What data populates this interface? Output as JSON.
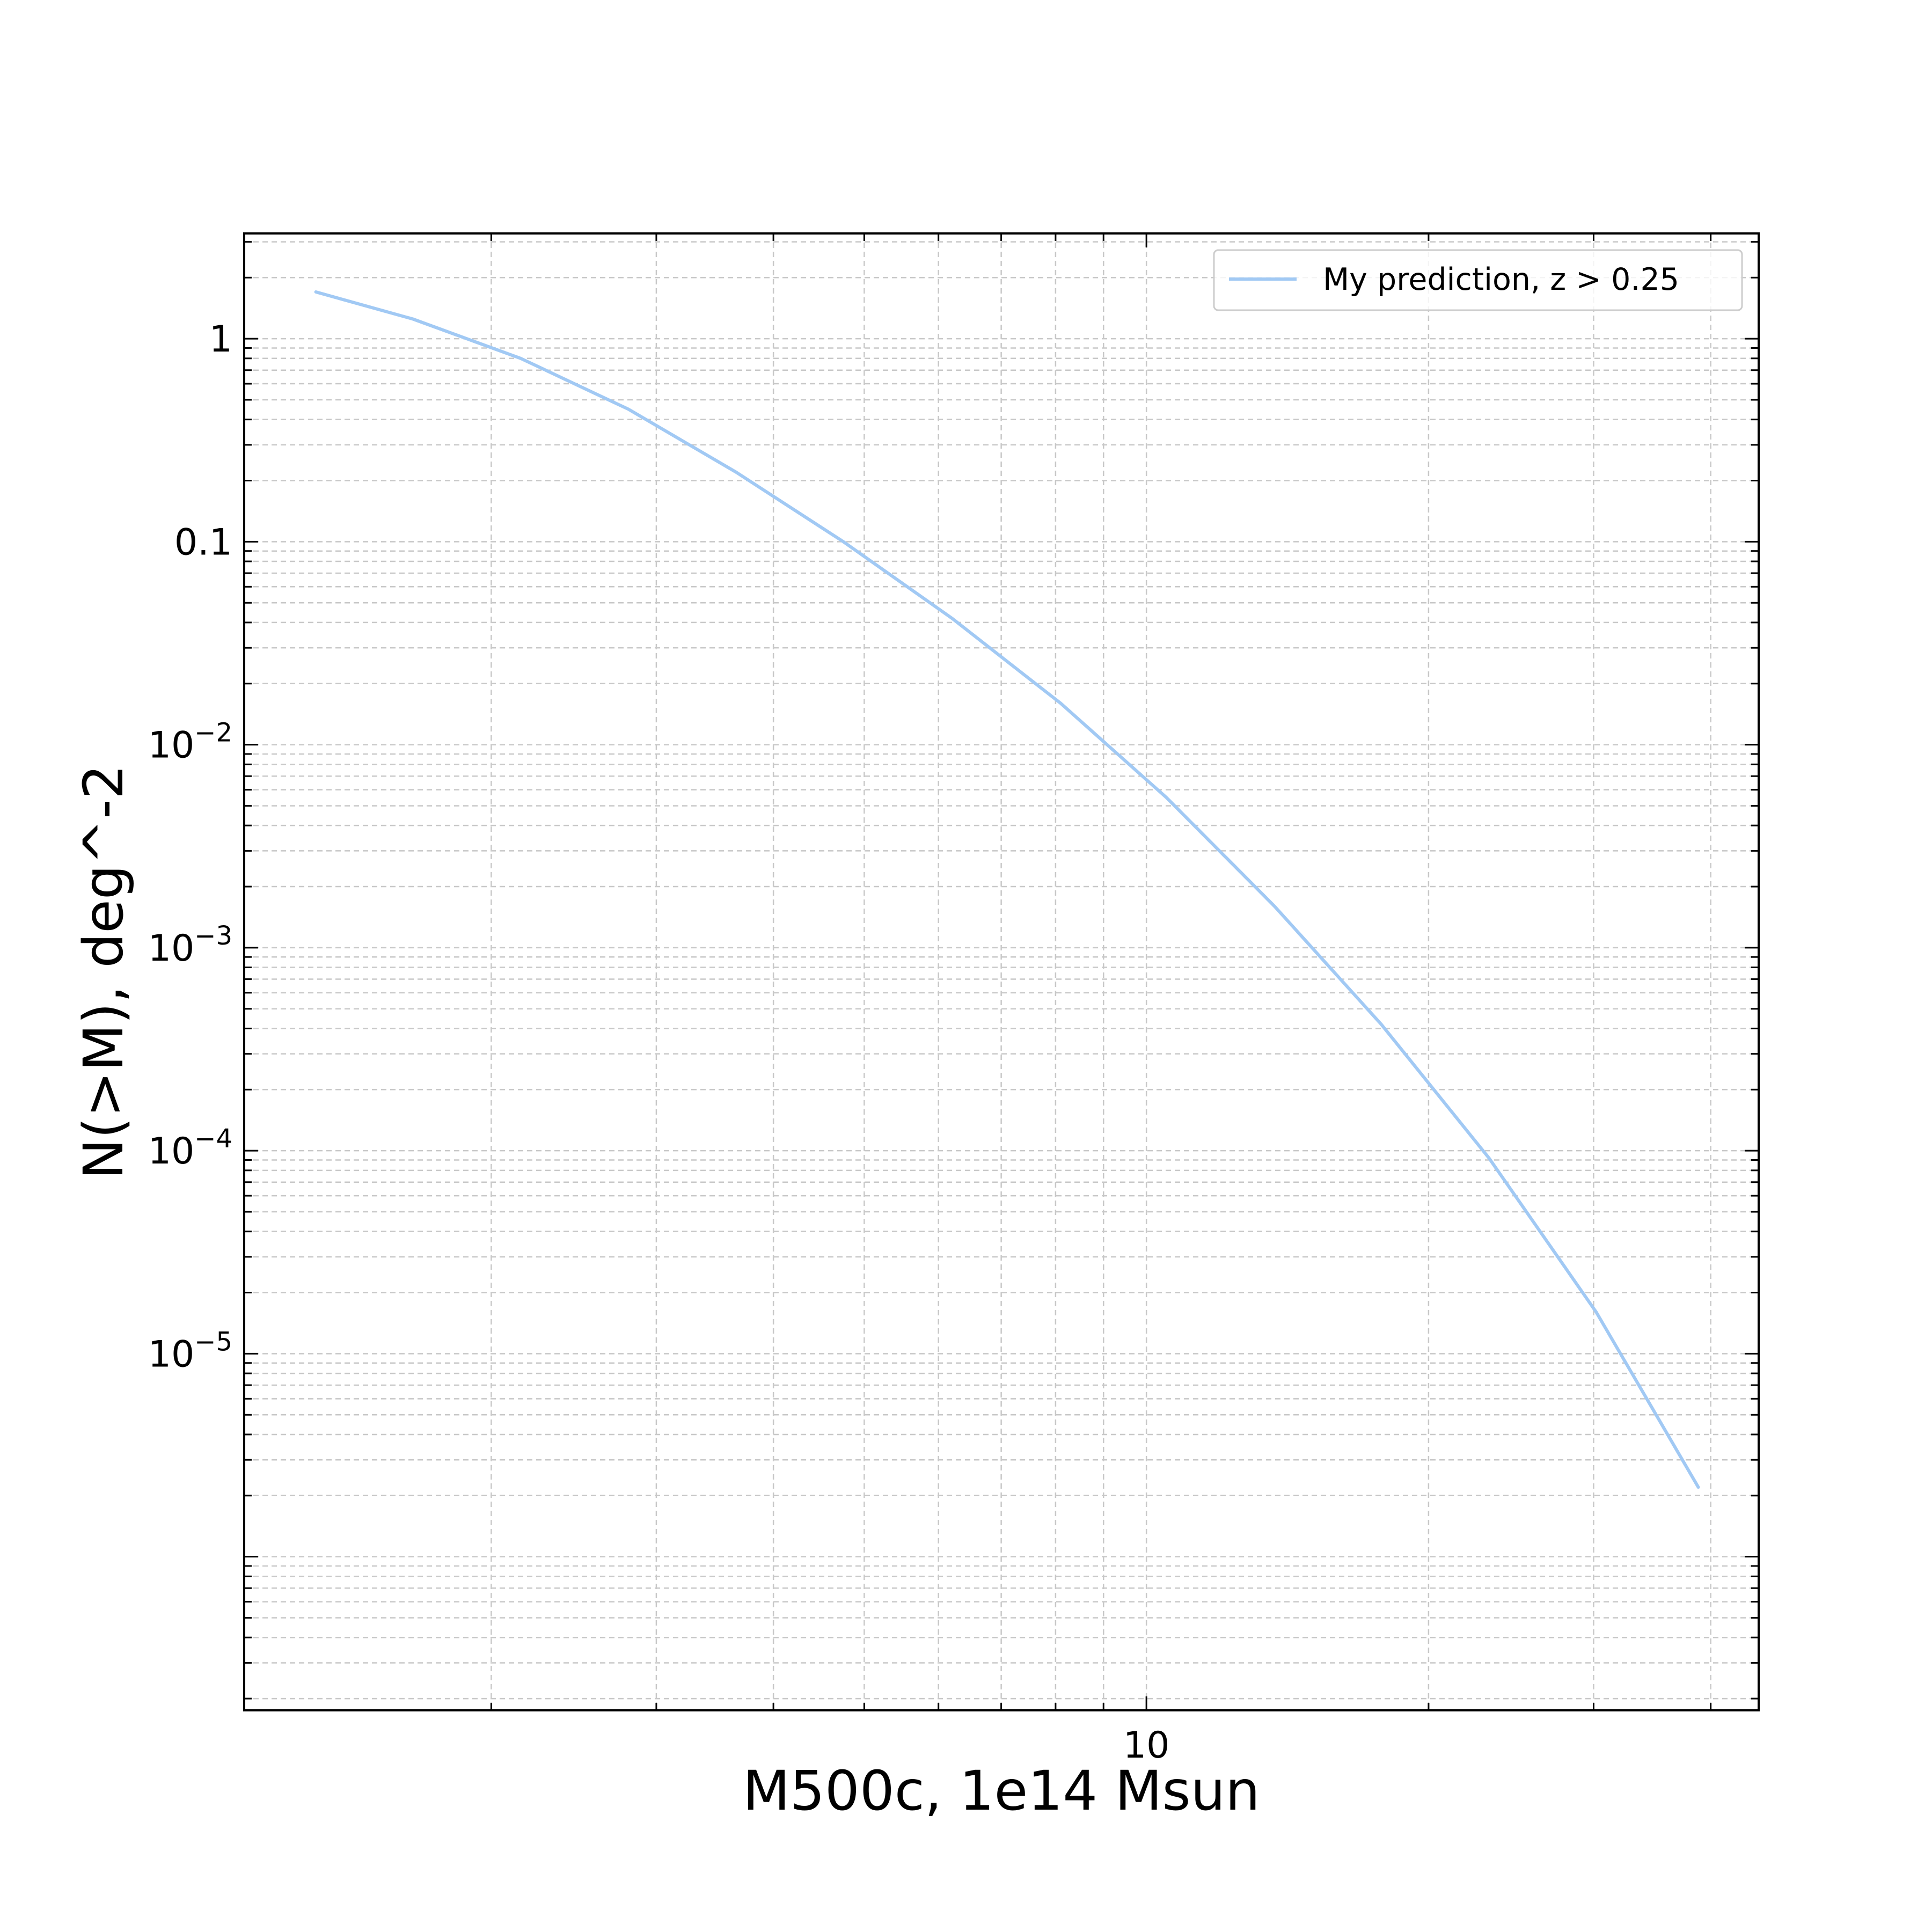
{
  "chart_data": {
    "type": "line",
    "xlabel": "M500c, 1e14 Msun",
    "ylabel": "N(>M), deg^-2",
    "xscale": "log",
    "yscale": "log",
    "xlim": [
      1.09,
      45.0
    ],
    "ylim": [
      1.75e-07,
      3.3
    ],
    "grid": true,
    "legend_placement": "top-right",
    "x_tick_labels": [
      {
        "value": 10,
        "label": "10"
      }
    ],
    "y_tick_labels": [
      {
        "value": 1,
        "base": "1",
        "exp": ""
      },
      {
        "value": 0.1,
        "base": "0.1",
        "exp": ""
      },
      {
        "value": 0.01,
        "base": "10",
        "exp": "−2"
      },
      {
        "value": 0.001,
        "base": "10",
        "exp": "−3"
      },
      {
        "value": 0.0001,
        "base": "10",
        "exp": "−4"
      },
      {
        "value": 1e-05,
        "base": "10",
        "exp": "−5"
      }
    ],
    "series": [
      {
        "name": "My prediction, z >  0.25",
        "color": "#a1c9f4",
        "x": [
          1.3,
          1.65,
          2.15,
          2.8,
          3.65,
          4.75,
          6.2,
          8.1,
          10.5,
          13.7,
          17.8,
          23.2,
          30.2,
          38.8
        ],
        "y": [
          1.7,
          1.25,
          0.8,
          0.45,
          0.22,
          0.1,
          0.042,
          0.016,
          0.0055,
          0.0016,
          0.00042,
          9.2e-05,
          1.6e-05,
          2.2e-06
        ]
      }
    ]
  }
}
